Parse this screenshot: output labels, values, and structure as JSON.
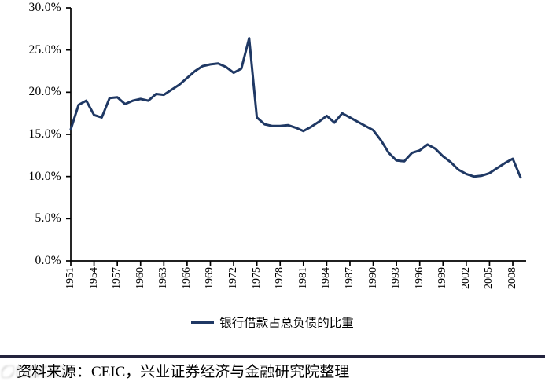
{
  "figure": {
    "background": "#ffffff",
    "axis_color": "#000000",
    "accent_color": "#1f3864"
  },
  "chart_data": {
    "type": "line",
    "title": "",
    "xlabel": "",
    "ylabel": "",
    "grid": false,
    "legend_position": "bottom-center",
    "ylim": [
      0,
      30
    ],
    "y_tick_labels": [
      "30.0%",
      "25.0%",
      "20.0%",
      "15.0%",
      "10.0%",
      "5.0%",
      "0.0%"
    ],
    "y_tick_values": [
      30,
      25,
      20,
      15,
      10,
      5,
      0
    ],
    "x_tick_years": [
      1951,
      1954,
      1957,
      1960,
      1963,
      1966,
      1969,
      1972,
      1975,
      1978,
      1981,
      1984,
      1987,
      1990,
      1993,
      1996,
      1999,
      2002,
      2005,
      2008
    ],
    "years": [
      1951,
      1952,
      1953,
      1954,
      1955,
      1956,
      1957,
      1958,
      1959,
      1960,
      1961,
      1962,
      1963,
      1964,
      1965,
      1966,
      1967,
      1968,
      1969,
      1970,
      1971,
      1972,
      1973,
      1974,
      1975,
      1976,
      1977,
      1978,
      1979,
      1980,
      1981,
      1982,
      1983,
      1984,
      1985,
      1986,
      1987,
      1988,
      1989,
      1990,
      1991,
      1992,
      1993,
      1994,
      1995,
      1996,
      1997,
      1998,
      1999,
      2000,
      2001,
      2002,
      2003,
      2004,
      2005,
      2006,
      2007,
      2008,
      2009
    ],
    "series": [
      {
        "name": "银行借款占总负债的比重",
        "color": "#1f3864",
        "unit": "%",
        "values": [
          15.6,
          18.5,
          19.0,
          17.3,
          17.0,
          19.3,
          19.4,
          18.6,
          19.0,
          19.2,
          19.0,
          19.8,
          19.7,
          20.3,
          20.9,
          21.7,
          22.5,
          23.1,
          23.3,
          23.4,
          23.0,
          22.3,
          22.8,
          26.4,
          17.0,
          16.2,
          16.0,
          16.0,
          16.1,
          15.8,
          15.4,
          15.9,
          16.5,
          17.2,
          16.4,
          17.5,
          17.0,
          16.5,
          16.0,
          15.5,
          14.3,
          12.8,
          11.9,
          11.8,
          12.8,
          13.1,
          13.8,
          13.3,
          12.4,
          11.7,
          10.8,
          10.3,
          10.0,
          10.1,
          10.4,
          11.0,
          11.6,
          12.1,
          9.9
        ]
      }
    ]
  },
  "legend": {
    "label": "银行借款占总负债的比重",
    "swatch_color": "#1f3864"
  },
  "footer": {
    "rule_color": "#23233d",
    "source_text": "资料来源：CEIC，兴业证券经济与金融研究院整理"
  },
  "icons": {
    "watermark": "illegible-gray-watermark-logo"
  }
}
